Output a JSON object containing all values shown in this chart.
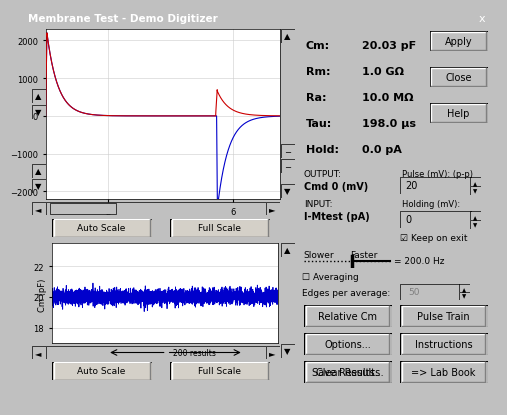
{
  "title": "Membrane Test - Demo Digitizer",
  "bg_color": "#c0c0c0",
  "plot_bg": "#ffffff",
  "title_bar_color": "#000080",
  "title_text_color": "#ffffff",
  "param_labels": [
    "Cm:",
    "Rm:",
    "Ra:",
    "Tau:",
    "Hold:"
  ],
  "param_values": [
    "20.03 pF",
    "1.0 GΩ",
    "10.0 MΩ",
    "198.0 μs",
    "0.0 pA"
  ],
  "buttons_top_right": [
    "Apply",
    "Close",
    "Help"
  ],
  "output_line1": "OUTPUT:",
  "output_line2": "Cmd 0 (mV)",
  "input_line1": "INPUT:",
  "input_line2": "I-Mtest (pA)",
  "pulse_label": "Pulse (mV): (p-p)",
  "pulse_value": "20",
  "holding_label": "Holding (mV):",
  "holding_value": "0",
  "keep_on_exit": "☑ Keep on exit",
  "slower_label": "Slower",
  "faster_label": "Faster",
  "hz_label": "= 200.0 Hz",
  "averaging_label": "☐ Averaging",
  "edges_label": "Edges per average:",
  "edges_value": "50",
  "btn_row1": [
    "Relative Cm",
    "Pulse Train"
  ],
  "btn_row2": [
    "Options...",
    "Instructions"
  ],
  "btn_row3": [
    "Save Results...",
    "=> Lab Book"
  ],
  "btn_single": "Clear Results",
  "autoscale_btn": "Auto Scale",
  "fullscale_btn": "Full Scale",
  "top_plot": {
    "yticks": [
      -2000,
      -1000,
      0,
      1000,
      2000
    ],
    "xticks": [
      2,
      6
    ],
    "ylim": [
      -2200,
      2300
    ],
    "xlim": [
      0.0,
      7.5
    ],
    "color_red": "#cc0000",
    "color_blue": "#0000cc"
  },
  "bottom_plot": {
    "ylabel": "Cm (pF)",
    "yticks": [
      18,
      20,
      22
    ],
    "ylim": [
      17.0,
      23.5
    ],
    "xlim": [
      0,
      200
    ],
    "cm_mean": 20.0,
    "noise_amp": 0.25,
    "color": "#0000cc",
    "results_label": "→200 results"
  }
}
